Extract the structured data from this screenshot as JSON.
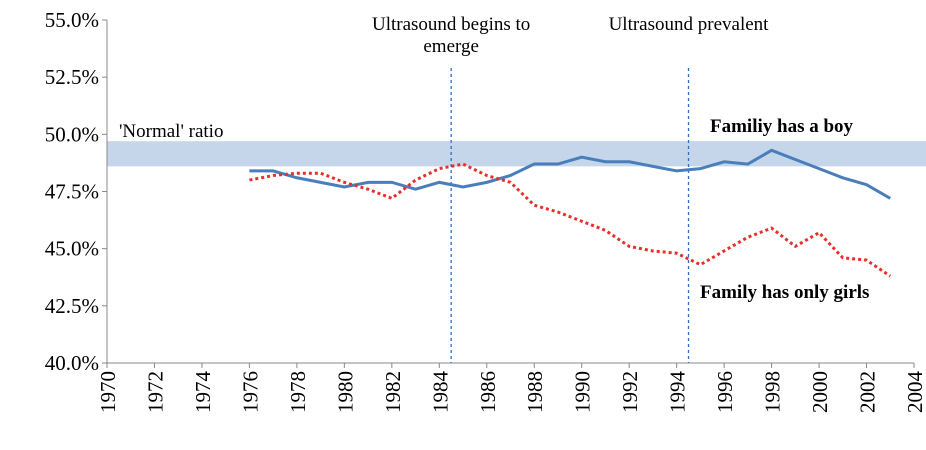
{
  "chart_data": {
    "type": "line",
    "xlim": [
      1970,
      2004
    ],
    "xticks": [
      1970,
      1972,
      1974,
      1976,
      1978,
      1980,
      1982,
      1984,
      1986,
      1988,
      1990,
      1992,
      1994,
      1996,
      1998,
      2000,
      2002,
      2004
    ],
    "ylim": [
      40,
      55
    ],
    "yticks": [
      {
        "value": 40,
        "label": "40.0%"
      },
      {
        "value": 42.5,
        "label": "42.5%"
      },
      {
        "value": 45,
        "label": "45.0%"
      },
      {
        "value": 47.5,
        "label": "47.5%"
      },
      {
        "value": 50,
        "label": "50.0%"
      },
      {
        "value": 52.5,
        "label": "52.5%"
      },
      {
        "value": 55,
        "label": "55.0%"
      }
    ],
    "normal_band": {
      "label": "'Normal' ratio",
      "range": [
        48.6,
        49.7
      ],
      "color": "#c5d5ea"
    },
    "events": [
      {
        "x": 1984.5,
        "lines": [
          "Ultrasound begins to",
          "emerge"
        ]
      },
      {
        "x": 1994.5,
        "lines": [
          "Ultrasound prevalent"
        ]
      }
    ],
    "x": [
      1976,
      1977,
      1978,
      1979,
      1980,
      1981,
      1982,
      1983,
      1984,
      1985,
      1986,
      1987,
      1988,
      1989,
      1990,
      1991,
      1992,
      1993,
      1994,
      1995,
      1996,
      1997,
      1998,
      1999,
      2000,
      2001,
      2002,
      2003
    ],
    "series": [
      {
        "name": "Familiy has a boy",
        "color": "#4a7ebb",
        "dashed": false,
        "values": [
          48.4,
          48.4,
          48.1,
          47.9,
          47.7,
          47.9,
          47.9,
          47.6,
          47.9,
          47.7,
          47.9,
          48.2,
          48.7,
          48.7,
          49.0,
          48.8,
          48.8,
          48.6,
          48.4,
          48.5,
          48.8,
          48.7,
          49.3,
          48.9,
          48.5,
          48.1,
          47.8,
          47.2
        ]
      },
      {
        "name": "Family has only girls",
        "color": "#e8302b",
        "dashed": true,
        "values": [
          48.0,
          48.2,
          48.3,
          48.3,
          47.9,
          47.6,
          47.2,
          48.0,
          48.5,
          48.7,
          48.2,
          47.9,
          46.9,
          46.6,
          46.2,
          45.8,
          45.1,
          44.9,
          44.8,
          44.3,
          44.9,
          45.5,
          45.9,
          45.1,
          45.7,
          44.6,
          44.5,
          43.8
        ]
      }
    ]
  }
}
